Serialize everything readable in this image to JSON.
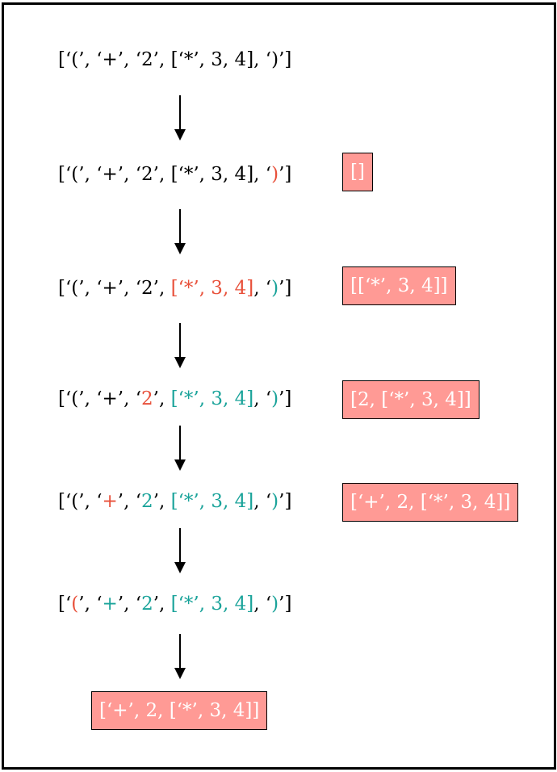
{
  "colors": {
    "default": "#000000",
    "active": "#e8503a",
    "done": "#1aa39a",
    "stack_bg": "#ff9a95",
    "stack_text": "#ffffff"
  },
  "steps": [
    {
      "tokens": [
        {
          "t": "[‘(’, ‘+’, ‘2’, [‘*’, 3, 4], ‘)’]",
          "s": "default"
        }
      ],
      "stack": null
    },
    {
      "tokens": [
        {
          "t": "[‘(’, ‘+’, ‘2’, [‘*’, 3, 4], ‘",
          "s": "default"
        },
        {
          "t": ")",
          "s": "active"
        },
        {
          "t": "’]",
          "s": "default"
        }
      ],
      "stack": "[]"
    },
    {
      "tokens": [
        {
          "t": "[‘(’, ‘+’, ‘2’, ",
          "s": "default"
        },
        {
          "t": "[‘*’, 3, 4]",
          "s": "active"
        },
        {
          "t": ", ‘",
          "s": "default"
        },
        {
          "t": ")",
          "s": "done"
        },
        {
          "t": "’]",
          "s": "default"
        }
      ],
      "stack": "[[‘*’, 3, 4]]"
    },
    {
      "tokens": [
        {
          "t": "[‘(’, ‘+’, ‘",
          "s": "default"
        },
        {
          "t": "2",
          "s": "active"
        },
        {
          "t": "’, ",
          "s": "default"
        },
        {
          "t": "[‘*’, 3, 4]",
          "s": "done"
        },
        {
          "t": ", ‘",
          "s": "default"
        },
        {
          "t": ")",
          "s": "done"
        },
        {
          "t": "’]",
          "s": "default"
        }
      ],
      "stack": "[2, [‘*’, 3, 4]]"
    },
    {
      "tokens": [
        {
          "t": "[‘(’, ‘",
          "s": "default"
        },
        {
          "t": "+",
          "s": "active"
        },
        {
          "t": "’, ‘",
          "s": "default"
        },
        {
          "t": "2",
          "s": "done"
        },
        {
          "t": "’, ",
          "s": "default"
        },
        {
          "t": "[‘*’, 3, 4]",
          "s": "done"
        },
        {
          "t": ", ‘",
          "s": "default"
        },
        {
          "t": ")",
          "s": "done"
        },
        {
          "t": "’]",
          "s": "default"
        }
      ],
      "stack": "[‘+’, 2, [‘*’, 3, 4]]"
    },
    {
      "tokens": [
        {
          "t": "[‘",
          "s": "default"
        },
        {
          "t": "(",
          "s": "active"
        },
        {
          "t": "’, ‘",
          "s": "default"
        },
        {
          "t": "+",
          "s": "done"
        },
        {
          "t": "’, ‘",
          "s": "default"
        },
        {
          "t": "2",
          "s": "done"
        },
        {
          "t": "’, ",
          "s": "default"
        },
        {
          "t": "[‘*’, 3, 4]",
          "s": "done"
        },
        {
          "t": ", ‘",
          "s": "default"
        },
        {
          "t": ")",
          "s": "done"
        },
        {
          "t": "’]",
          "s": "default"
        }
      ],
      "stack": null
    }
  ],
  "result": "[‘+’, 2, [‘*’, 3, 4]]"
}
